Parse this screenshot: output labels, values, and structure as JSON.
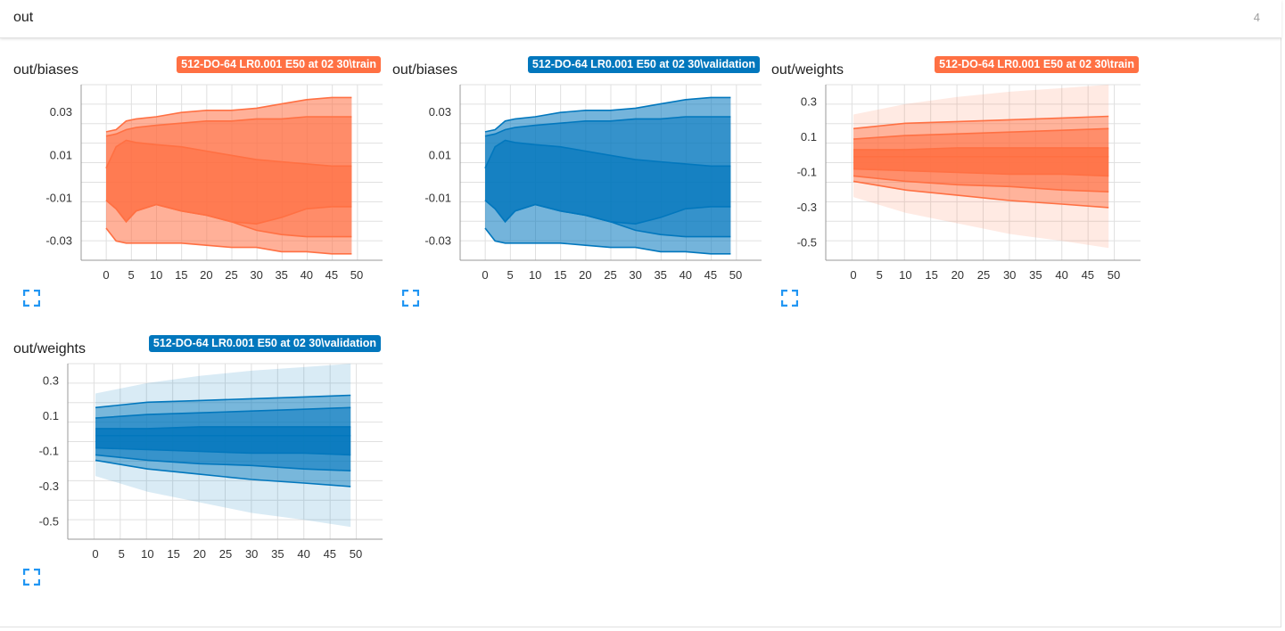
{
  "header": {
    "title": "out",
    "count": "4"
  },
  "colors": {
    "train": "#ff7043",
    "validation": "#0277bd"
  },
  "icons": {
    "expand": "expand-icon"
  },
  "cards": [
    {
      "title": "out/biases",
      "run": "512-DO-64 LR0.001 E50 at 02 30\\train",
      "color": "train",
      "chart_data": {
        "type": "area",
        "x_ticks": [
          "0",
          "5",
          "10",
          "15",
          "20",
          "25",
          "30",
          "35",
          "40",
          "45",
          "50"
        ],
        "y_ticks": [
          "0.03",
          "0.01",
          "-0.01",
          "-0.03"
        ],
        "y_tick_values": [
          0.03,
          0.01,
          -0.01,
          -0.03
        ],
        "xlim": [
          0,
          50
        ],
        "ylim": [
          -0.039,
          0.043
        ],
        "x": [
          0,
          2,
          4,
          6,
          10,
          15,
          20,
          25,
          30,
          35,
          40,
          45,
          49
        ],
        "bands": [
          {
            "upper": [
              0.021,
              0.022,
              0.026,
              0.027,
              0.028,
              0.03,
              0.031,
              0.031,
              0.032,
              0.034,
              0.036,
              0.037,
              0.037
            ],
            "lower": [
              -0.024,
              -0.03,
              -0.031,
              -0.031,
              -0.031,
              -0.031,
              -0.032,
              -0.033,
              -0.033,
              -0.035,
              -0.035,
              -0.036,
              -0.036
            ]
          },
          {
            "upper": [
              0.019,
              0.02,
              0.022,
              0.023,
              0.024,
              0.025,
              0.026,
              0.026,
              0.027,
              0.027,
              0.028,
              0.028,
              0.028
            ],
            "lower": [
              -0.011,
              -0.015,
              -0.021,
              -0.016,
              -0.013,
              -0.016,
              -0.018,
              -0.021,
              -0.025,
              -0.027,
              -0.028,
              -0.028,
              -0.028
            ]
          },
          {
            "upper": [
              0.004,
              0.014,
              0.017,
              0.016,
              0.015,
              0.014,
              0.012,
              0.01,
              0.008,
              0.007,
              0.006,
              0.005,
              0.005
            ],
            "lower": [
              -0.011,
              -0.015,
              -0.021,
              -0.016,
              -0.013,
              -0.016,
              -0.018,
              -0.021,
              -0.022,
              -0.019,
              -0.015,
              -0.014,
              -0.014
            ]
          }
        ]
      }
    },
    {
      "title": "out/biases",
      "run": "512-DO-64 LR0.001 E50 at 02 30\\validation",
      "color": "validation",
      "chart_data": {
        "type": "area",
        "x_ticks": [
          "0",
          "5",
          "10",
          "15",
          "20",
          "25",
          "30",
          "35",
          "40",
          "45",
          "50"
        ],
        "y_ticks": [
          "0.03",
          "0.01",
          "-0.01",
          "-0.03"
        ],
        "y_tick_values": [
          0.03,
          0.01,
          -0.01,
          -0.03
        ],
        "xlim": [
          0,
          50
        ],
        "ylim": [
          -0.039,
          0.043
        ],
        "x": [
          0,
          2,
          4,
          6,
          10,
          15,
          20,
          25,
          30,
          35,
          40,
          45,
          49
        ],
        "bands": [
          {
            "upper": [
              0.021,
              0.022,
              0.026,
              0.027,
              0.028,
              0.03,
              0.031,
              0.031,
              0.032,
              0.034,
              0.036,
              0.037,
              0.037
            ],
            "lower": [
              -0.024,
              -0.03,
              -0.031,
              -0.031,
              -0.031,
              -0.031,
              -0.032,
              -0.033,
              -0.033,
              -0.035,
              -0.035,
              -0.036,
              -0.036
            ]
          },
          {
            "upper": [
              0.019,
              0.02,
              0.022,
              0.023,
              0.024,
              0.025,
              0.026,
              0.026,
              0.027,
              0.027,
              0.028,
              0.028,
              0.028
            ],
            "lower": [
              -0.011,
              -0.015,
              -0.021,
              -0.016,
              -0.013,
              -0.016,
              -0.018,
              -0.021,
              -0.025,
              -0.027,
              -0.028,
              -0.028,
              -0.028
            ]
          },
          {
            "upper": [
              0.004,
              0.014,
              0.017,
              0.016,
              0.015,
              0.014,
              0.012,
              0.01,
              0.008,
              0.007,
              0.006,
              0.005,
              0.005
            ],
            "lower": [
              -0.011,
              -0.015,
              -0.021,
              -0.016,
              -0.013,
              -0.016,
              -0.018,
              -0.021,
              -0.022,
              -0.019,
              -0.015,
              -0.014,
              -0.014
            ]
          }
        ]
      }
    },
    {
      "title": "out/weights",
      "run": "512-DO-64 LR0.001 E50 at 02 30\\train",
      "color": "train",
      "chart_data": {
        "type": "area",
        "x_ticks": [
          "0",
          "5",
          "10",
          "15",
          "20",
          "25",
          "30",
          "35",
          "40",
          "45",
          "50"
        ],
        "y_ticks": [
          "0.3",
          "0.1",
          "-0.1",
          "-0.3",
          "-0.5"
        ],
        "y_tick_values": [
          0.3,
          0.1,
          -0.1,
          -0.3,
          -0.5
        ],
        "xlim": [
          0,
          50
        ],
        "ylim": [
          -0.6,
          0.4
        ],
        "x": [
          0,
          10,
          20,
          30,
          40,
          49
        ],
        "bands": [
          {
            "upper": [
              0.23,
              0.29,
              0.33,
              0.36,
              0.38,
              0.4
            ],
            "lower": [
              -0.24,
              -0.33,
              -0.39,
              -0.45,
              -0.49,
              -0.53
            ]
          },
          {
            "upper": [
              0.15,
              0.18,
              0.19,
              0.2,
              0.21,
              0.22
            ],
            "lower": [
              -0.15,
              -0.2,
              -0.23,
              -0.26,
              -0.28,
              -0.3
            ]
          },
          {
            "upper": [
              0.09,
              0.11,
              0.12,
              0.13,
              0.14,
              0.15
            ],
            "lower": [
              -0.12,
              -0.15,
              -0.17,
              -0.18,
              -0.2,
              -0.21
            ]
          },
          {
            "upper": [
              0.03,
              0.03,
              0.04,
              0.04,
              0.04,
              0.04
            ],
            "lower": [
              -0.08,
              -0.09,
              -0.1,
              -0.11,
              -0.11,
              -0.12
            ]
          }
        ],
        "median": [
          -0.01,
          -0.01,
          -0.01,
          -0.01,
          -0.01,
          -0.01
        ]
      }
    },
    {
      "title": "out/weights",
      "run": "512-DO-64 LR0.001 E50 at 02 30\\validation",
      "color": "validation",
      "chart_data": {
        "type": "area",
        "x_ticks": [
          "0",
          "5",
          "10",
          "15",
          "20",
          "25",
          "30",
          "35",
          "40",
          "45",
          "50"
        ],
        "y_ticks": [
          "0.3",
          "0.1",
          "-0.1",
          "-0.3",
          "-0.5"
        ],
        "y_tick_values": [
          0.3,
          0.1,
          -0.1,
          -0.3,
          -0.5
        ],
        "xlim": [
          0,
          50
        ],
        "ylim": [
          -0.6,
          0.4
        ],
        "x": [
          0,
          10,
          20,
          30,
          40,
          49
        ],
        "bands": [
          {
            "upper": [
              0.23,
              0.29,
              0.33,
              0.36,
              0.38,
              0.4
            ],
            "lower": [
              -0.24,
              -0.33,
              -0.39,
              -0.45,
              -0.49,
              -0.53
            ]
          },
          {
            "upper": [
              0.15,
              0.18,
              0.19,
              0.2,
              0.21,
              0.22
            ],
            "lower": [
              -0.15,
              -0.2,
              -0.23,
              -0.26,
              -0.28,
              -0.3
            ]
          },
          {
            "upper": [
              0.09,
              0.11,
              0.12,
              0.13,
              0.14,
              0.15
            ],
            "lower": [
              -0.12,
              -0.15,
              -0.17,
              -0.18,
              -0.2,
              -0.21
            ]
          },
          {
            "upper": [
              0.03,
              0.03,
              0.04,
              0.04,
              0.04,
              0.04
            ],
            "lower": [
              -0.08,
              -0.09,
              -0.1,
              -0.11,
              -0.11,
              -0.12
            ]
          }
        ],
        "median": [
          -0.01,
          -0.01,
          -0.01,
          -0.01,
          -0.01,
          -0.01
        ]
      }
    }
  ]
}
